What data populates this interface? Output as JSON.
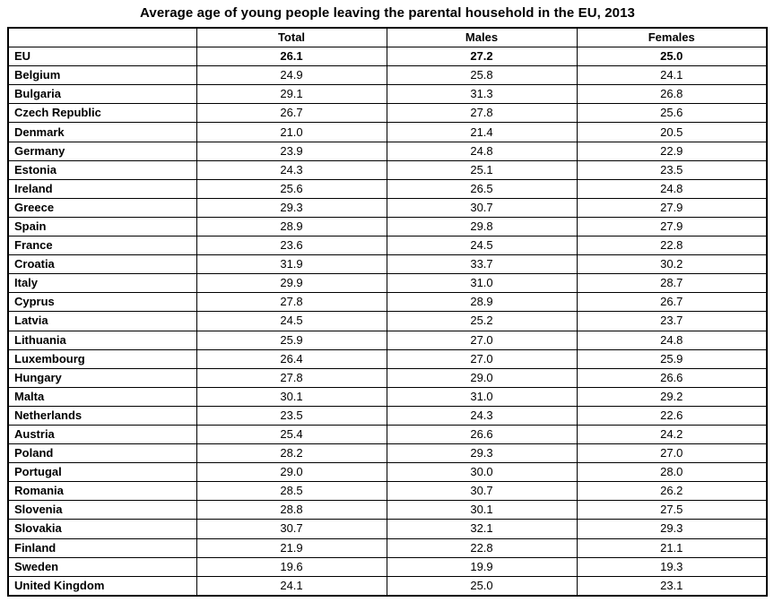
{
  "title": "Average age of young people leaving the parental household in the EU, 2013",
  "chart_data": {
    "type": "table",
    "title": "Average age of young people leaving the parental household in the EU, 2013",
    "columns": [
      "",
      "Total",
      "Males",
      "Females"
    ],
    "rows": [
      {
        "name": "EU",
        "bold": true,
        "values": [
          "26.1",
          "27.2",
          "25.0"
        ]
      },
      {
        "name": "Belgium",
        "bold": false,
        "values": [
          "24.9",
          "25.8",
          "24.1"
        ]
      },
      {
        "name": "Bulgaria",
        "bold": false,
        "values": [
          "29.1",
          "31.3",
          "26.8"
        ]
      },
      {
        "name": "Czech Republic",
        "bold": false,
        "values": [
          "26.7",
          "27.8",
          "25.6"
        ]
      },
      {
        "name": "Denmark",
        "bold": false,
        "values": [
          "21.0",
          "21.4",
          "20.5"
        ]
      },
      {
        "name": "Germany",
        "bold": false,
        "values": [
          "23.9",
          "24.8",
          "22.9"
        ]
      },
      {
        "name": "Estonia",
        "bold": false,
        "values": [
          "24.3",
          "25.1",
          "23.5"
        ]
      },
      {
        "name": "Ireland",
        "bold": false,
        "values": [
          "25.6",
          "26.5",
          "24.8"
        ]
      },
      {
        "name": "Greece",
        "bold": false,
        "values": [
          "29.3",
          "30.7",
          "27.9"
        ]
      },
      {
        "name": "Spain",
        "bold": false,
        "values": [
          "28.9",
          "29.8",
          "27.9"
        ]
      },
      {
        "name": "France",
        "bold": false,
        "values": [
          "23.6",
          "24.5",
          "22.8"
        ]
      },
      {
        "name": "Croatia",
        "bold": false,
        "values": [
          "31.9",
          "33.7",
          "30.2"
        ]
      },
      {
        "name": "Italy",
        "bold": false,
        "values": [
          "29.9",
          "31.0",
          "28.7"
        ]
      },
      {
        "name": "Cyprus",
        "bold": false,
        "values": [
          "27.8",
          "28.9",
          "26.7"
        ]
      },
      {
        "name": "Latvia",
        "bold": false,
        "values": [
          "24.5",
          "25.2",
          "23.7"
        ]
      },
      {
        "name": "Lithuania",
        "bold": false,
        "values": [
          "25.9",
          "27.0",
          "24.8"
        ]
      },
      {
        "name": "Luxembourg",
        "bold": false,
        "values": [
          "26.4",
          "27.0",
          "25.9"
        ]
      },
      {
        "name": "Hungary",
        "bold": false,
        "values": [
          "27.8",
          "29.0",
          "26.6"
        ]
      },
      {
        "name": "Malta",
        "bold": false,
        "values": [
          "30.1",
          "31.0",
          "29.2"
        ]
      },
      {
        "name": "Netherlands",
        "bold": false,
        "values": [
          "23.5",
          "24.3",
          "22.6"
        ]
      },
      {
        "name": "Austria",
        "bold": false,
        "values": [
          "25.4",
          "26.6",
          "24.2"
        ]
      },
      {
        "name": "Poland",
        "bold": false,
        "values": [
          "28.2",
          "29.3",
          "27.0"
        ]
      },
      {
        "name": "Portugal",
        "bold": false,
        "values": [
          "29.0",
          "30.0",
          "28.0"
        ]
      },
      {
        "name": "Romania",
        "bold": false,
        "values": [
          "28.5",
          "30.7",
          "26.2"
        ]
      },
      {
        "name": "Slovenia",
        "bold": false,
        "values": [
          "28.8",
          "30.1",
          "27.5"
        ]
      },
      {
        "name": "Slovakia",
        "bold": false,
        "values": [
          "30.7",
          "32.1",
          "29.3"
        ]
      },
      {
        "name": "Finland",
        "bold": false,
        "values": [
          "21.9",
          "22.8",
          "21.1"
        ]
      },
      {
        "name": "Sweden",
        "bold": false,
        "values": [
          "19.6",
          "19.9",
          "19.3"
        ]
      },
      {
        "name": "United Kingdom",
        "bold": false,
        "values": [
          "24.1",
          "25.0",
          "23.1"
        ]
      }
    ]
  }
}
